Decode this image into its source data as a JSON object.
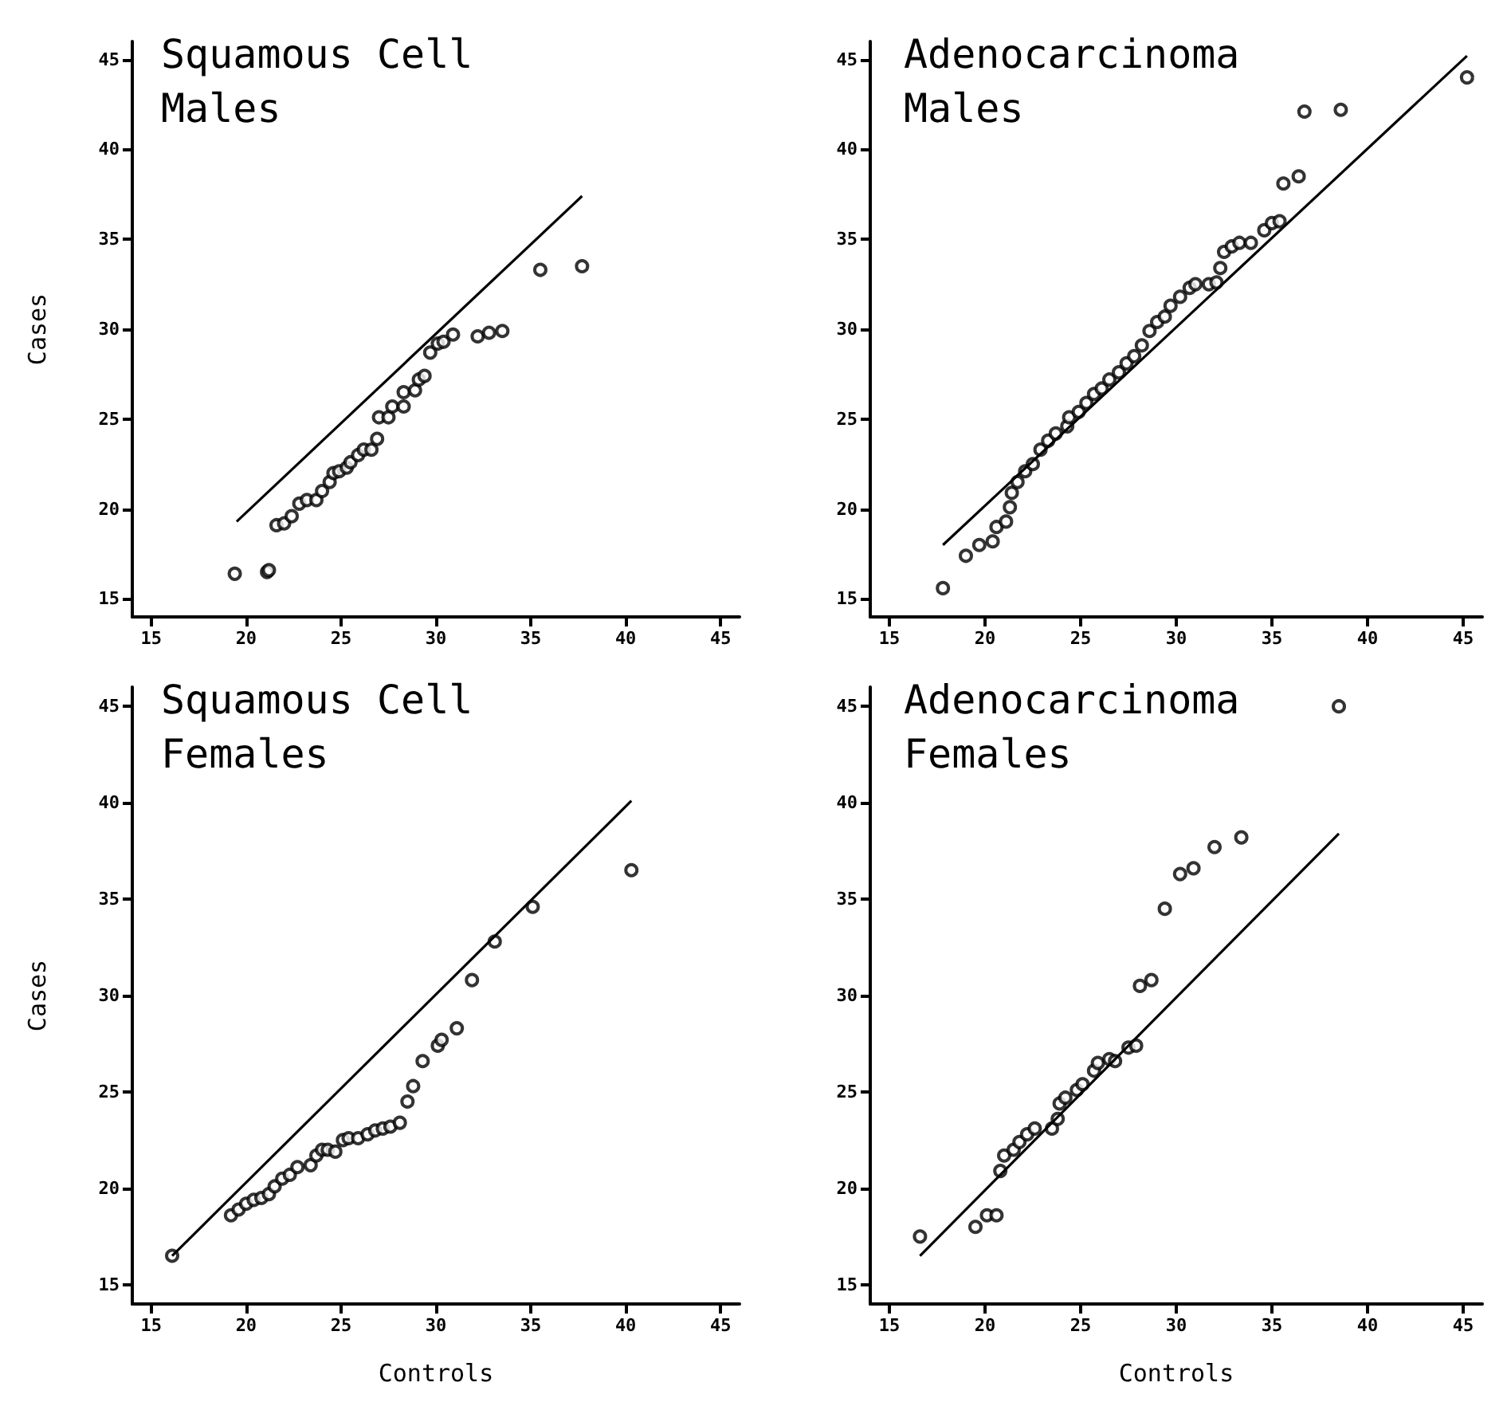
{
  "chart_data": [
    {
      "type": "scatter",
      "title": "Squamous Cell\nMales",
      "ylabel": "Cases",
      "xlim": [
        14,
        46
      ],
      "ylim": [
        14,
        46
      ],
      "xticks": [
        15,
        20,
        25,
        30,
        35,
        40,
        45
      ],
      "yticks": [
        15,
        20,
        25,
        30,
        35,
        40,
        45
      ],
      "grid": false,
      "series": [
        {
          "marker": "circle",
          "color": "#000000",
          "x": [
            19.4,
            21.1,
            21.2,
            21.6,
            22.0,
            22.4,
            22.8,
            23.2,
            23.7,
            24.0,
            24.4,
            24.6,
            24.9,
            25.3,
            25.5,
            25.9,
            26.2,
            26.6,
            26.9,
            27.0,
            27.5,
            27.7,
            28.3,
            28.3,
            28.9,
            29.1,
            29.4,
            29.7,
            30.1,
            30.4,
            30.9,
            32.2,
            32.8,
            33.5,
            35.5,
            37.7
          ],
          "values": [
            16.4,
            16.5,
            16.6,
            19.1,
            19.2,
            19.6,
            20.3,
            20.5,
            20.5,
            21.0,
            21.5,
            22.0,
            22.1,
            22.3,
            22.6,
            23.0,
            23.3,
            23.3,
            23.9,
            25.1,
            25.1,
            25.7,
            25.7,
            26.5,
            26.6,
            27.2,
            27.4,
            28.7,
            29.2,
            29.3,
            29.7,
            29.6,
            29.8,
            29.9,
            33.3,
            33.5
          ]
        },
        {
          "type": "line",
          "marker": "none",
          "color": "#000000",
          "x": [
            19.5,
            37.7
          ],
          "values": [
            19.3,
            37.4
          ]
        }
      ]
    },
    {
      "type": "scatter",
      "title": "Adenocarcinoma\nMales",
      "xlim": [
        14,
        46
      ],
      "ylim": [
        14,
        46
      ],
      "xticks": [
        15,
        20,
        25,
        30,
        35,
        40,
        45
      ],
      "yticks": [
        15,
        20,
        25,
        30,
        35,
        40,
        45
      ],
      "grid": false,
      "series": [
        {
          "marker": "circle",
          "color": "#000000",
          "x": [
            17.8,
            19.0,
            19.7,
            20.4,
            20.6,
            21.1,
            21.3,
            21.4,
            21.7,
            22.1,
            22.5,
            22.9,
            23.3,
            23.7,
            24.3,
            24.4,
            24.9,
            25.3,
            25.7,
            26.1,
            26.5,
            27.0,
            27.4,
            27.8,
            28.2,
            28.6,
            29.0,
            29.4,
            29.7,
            30.2,
            30.7,
            31.0,
            31.7,
            32.1,
            32.3,
            32.5,
            32.9,
            33.3,
            33.9,
            34.6,
            35.0,
            35.4,
            35.6,
            36.4,
            36.7,
            38.6,
            45.2
          ],
          "values": [
            15.6,
            17.4,
            18.0,
            18.2,
            19.0,
            19.3,
            20.1,
            20.9,
            21.5,
            22.1,
            22.5,
            23.3,
            23.8,
            24.2,
            24.6,
            25.1,
            25.4,
            25.9,
            26.4,
            26.7,
            27.2,
            27.6,
            28.1,
            28.5,
            29.1,
            29.9,
            30.4,
            30.7,
            31.3,
            31.8,
            32.3,
            32.5,
            32.5,
            32.6,
            33.4,
            34.3,
            34.6,
            34.8,
            34.8,
            35.5,
            35.9,
            36.0,
            38.1,
            38.5,
            42.1,
            42.2,
            44.0
          ]
        },
        {
          "type": "line",
          "marker": "none",
          "color": "#000000",
          "x": [
            17.8,
            45.2
          ],
          "values": [
            18.0,
            45.2
          ]
        }
      ]
    },
    {
      "type": "scatter",
      "title": "Squamous Cell\nFemales",
      "xlabel": "Controls",
      "ylabel": "Cases",
      "xlim": [
        14,
        46
      ],
      "ylim": [
        14,
        46
      ],
      "xticks": [
        15,
        20,
        25,
        30,
        35,
        40,
        45
      ],
      "yticks": [
        15,
        20,
        25,
        30,
        35,
        40,
        45
      ],
      "grid": false,
      "series": [
        {
          "marker": "circle",
          "color": "#000000",
          "x": [
            16.1,
            19.2,
            19.6,
            20.0,
            20.4,
            20.8,
            21.2,
            21.5,
            21.9,
            22.3,
            22.7,
            23.4,
            23.7,
            24.0,
            24.3,
            24.7,
            25.1,
            25.4,
            25.9,
            26.4,
            26.8,
            27.2,
            27.6,
            28.1,
            28.5,
            28.8,
            29.3,
            30.1,
            30.3,
            31.1,
            31.9,
            33.1,
            35.1,
            40.3
          ],
          "values": [
            16.5,
            18.6,
            18.9,
            19.2,
            19.4,
            19.5,
            19.7,
            20.1,
            20.5,
            20.7,
            21.1,
            21.2,
            21.7,
            22.0,
            22.0,
            21.9,
            22.5,
            22.6,
            22.6,
            22.8,
            23.0,
            23.1,
            23.2,
            23.4,
            24.5,
            25.3,
            26.6,
            27.4,
            27.7,
            28.3,
            30.8,
            32.8,
            34.6,
            36.5
          ]
        },
        {
          "type": "line",
          "marker": "none",
          "color": "#000000",
          "x": [
            16.1,
            40.3
          ],
          "values": [
            16.5,
            40.1
          ]
        }
      ]
    },
    {
      "type": "scatter",
      "title": "Adenocarcinoma\nFemales",
      "xlabel": "Controls",
      "xlim": [
        14,
        46
      ],
      "ylim": [
        14,
        46
      ],
      "xticks": [
        15,
        20,
        25,
        30,
        35,
        40,
        45
      ],
      "yticks": [
        15,
        20,
        25,
        30,
        35,
        40,
        45
      ],
      "grid": false,
      "series": [
        {
          "marker": "circle",
          "color": "#000000",
          "x": [
            16.6,
            19.5,
            20.1,
            20.6,
            20.8,
            21.0,
            21.5,
            21.8,
            22.2,
            22.6,
            23.5,
            23.8,
            23.9,
            24.2,
            24.8,
            25.1,
            25.7,
            25.9,
            26.5,
            26.8,
            27.5,
            27.9,
            28.1,
            28.7,
            29.4,
            30.2,
            30.9,
            32.0,
            33.4,
            38.5
          ],
          "values": [
            17.5,
            18.0,
            18.6,
            18.6,
            20.9,
            21.7,
            22.0,
            22.4,
            22.8,
            23.1,
            23.1,
            23.6,
            24.4,
            24.7,
            25.1,
            25.4,
            26.1,
            26.5,
            26.7,
            26.6,
            27.3,
            27.4,
            30.5,
            30.8,
            34.5,
            36.3,
            36.6,
            37.7,
            38.2,
            45.0
          ]
        },
        {
          "type": "line",
          "marker": "none",
          "color": "#000000",
          "x": [
            16.6,
            38.5
          ],
          "values": [
            16.5,
            38.4
          ]
        }
      ]
    }
  ]
}
